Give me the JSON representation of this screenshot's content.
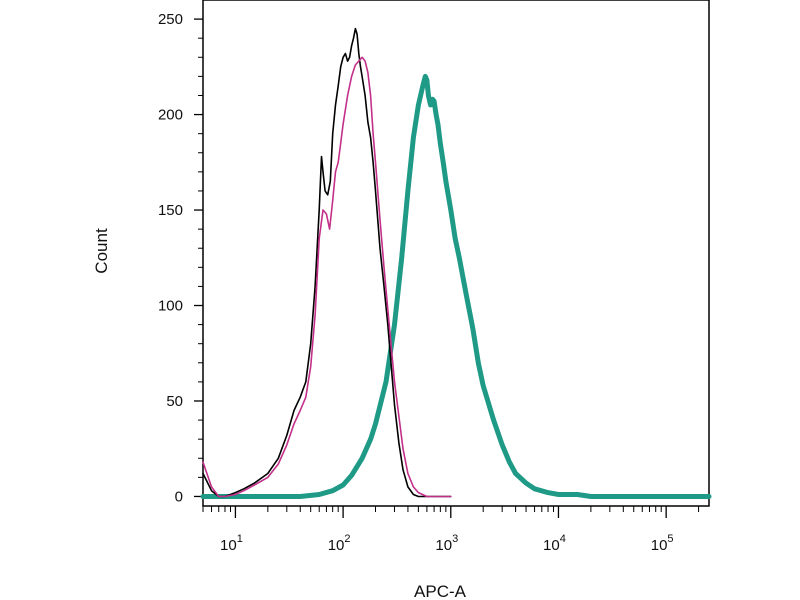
{
  "chart_data": {
    "type": "line",
    "title": "",
    "xlabel": "APC-A",
    "ylabel": "Count",
    "xscale": "log",
    "xlim": [
      5,
      250000
    ],
    "ylim": [
      -5,
      260
    ],
    "grid": false,
    "y_ticks": [
      0,
      50,
      100,
      150,
      200,
      250
    ],
    "y_tick_labels": [
      "0",
      "50",
      "100",
      "150",
      "200",
      "250"
    ],
    "x_ticks": [
      10,
      100,
      1000,
      10000,
      100000
    ],
    "x_tick_labels": [
      {
        "base": "10",
        "exp": "1"
      },
      {
        "base": "10",
        "exp": "2"
      },
      {
        "base": "10",
        "exp": "3"
      },
      {
        "base": "10",
        "exp": "4"
      },
      {
        "base": "10",
        "exp": "5"
      }
    ],
    "series": [
      {
        "color": "#000000",
        "line": "thin",
        "x": [
          5,
          6,
          7,
          8,
          10,
          12,
          15,
          20,
          25,
          30,
          35,
          40,
          45,
          50,
          55,
          60,
          63,
          65,
          68,
          72,
          76,
          80,
          85,
          90,
          95,
          100,
          105,
          110,
          115,
          120,
          125,
          130,
          135,
          140,
          145,
          150,
          160,
          170,
          180,
          190,
          200,
          220,
          240,
          260,
          280,
          300,
          330,
          360,
          400,
          450,
          500,
          600,
          700,
          1000
        ],
        "y": [
          12,
          3,
          0,
          0,
          2,
          4,
          7,
          12,
          20,
          32,
          45,
          52,
          60,
          80,
          110,
          150,
          178,
          170,
          160,
          158,
          165,
          190,
          205,
          215,
          225,
          230,
          232,
          228,
          230,
          236,
          240,
          245,
          242,
          232,
          225,
          220,
          210,
          196,
          188,
          175,
          160,
          130,
          110,
          90,
          68,
          48,
          28,
          14,
          5,
          1,
          0,
          0,
          0,
          0
        ]
      },
      {
        "color": "#c2308a",
        "line": "thin",
        "x": [
          5,
          6,
          7,
          8,
          10,
          12,
          15,
          20,
          25,
          30,
          35,
          40,
          45,
          50,
          55,
          60,
          65,
          70,
          75,
          80,
          85,
          90,
          95,
          100,
          110,
          120,
          130,
          140,
          150,
          160,
          170,
          180,
          190,
          200,
          220,
          240,
          260,
          280,
          300,
          330,
          360,
          400,
          450,
          500,
          600,
          700,
          1000
        ],
        "y": [
          18,
          5,
          0,
          0,
          1,
          3,
          6,
          10,
          17,
          27,
          38,
          45,
          52,
          68,
          95,
          135,
          150,
          148,
          140,
          155,
          170,
          175,
          185,
          195,
          210,
          220,
          226,
          228,
          230,
          228,
          222,
          210,
          190,
          175,
          145,
          120,
          98,
          78,
          60,
          42,
          25,
          12,
          5,
          2,
          0,
          0,
          0
        ]
      },
      {
        "color": "#1e9a86",
        "line": "thick",
        "x": [
          5,
          10,
          20,
          40,
          60,
          80,
          100,
          120,
          150,
          180,
          200,
          250,
          300,
          350,
          400,
          450,
          500,
          550,
          580,
          600,
          620,
          650,
          680,
          700,
          730,
          760,
          800,
          850,
          900,
          1000,
          1100,
          1200,
          1400,
          1600,
          1800,
          2000,
          2500,
          3000,
          3500,
          4000,
          5000,
          6000,
          8000,
          10000,
          15000,
          20000,
          50000,
          100000,
          250000
        ],
        "y": [
          0,
          0,
          0,
          0,
          1,
          3,
          6,
          11,
          20,
          30,
          38,
          60,
          90,
          125,
          160,
          188,
          205,
          215,
          220,
          218,
          210,
          205,
          208,
          207,
          200,
          195,
          185,
          175,
          165,
          150,
          135,
          125,
          105,
          88,
          70,
          58,
          40,
          27,
          18,
          12,
          7,
          4,
          2,
          1,
          1,
          0,
          0,
          0,
          0
        ]
      }
    ]
  }
}
